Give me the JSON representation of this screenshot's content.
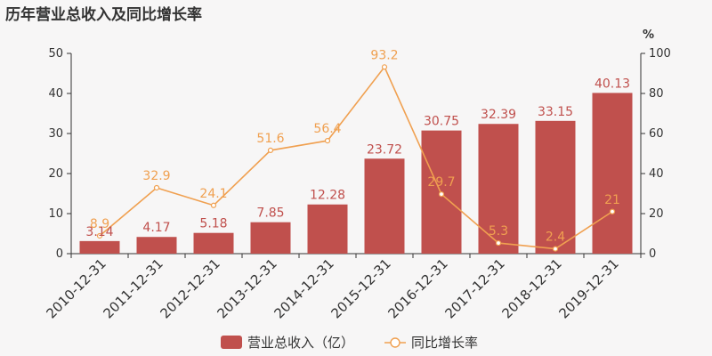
{
  "chart_data": {
    "type": "bar",
    "title": "历年营业总收入及同比增长率",
    "categories": [
      "2010-12-31",
      "2011-12-31",
      "2012-12-31",
      "2013-12-31",
      "2014-12-31",
      "2015-12-31",
      "2016-12-31",
      "2017-12-31",
      "2018-12-31",
      "2019-12-31"
    ],
    "series": [
      {
        "name": "营业总收入（亿）",
        "type": "bar",
        "axis": "left",
        "color": "#c0504d",
        "values": [
          3.14,
          4.17,
          5.18,
          7.85,
          12.28,
          23.72,
          30.75,
          32.39,
          33.15,
          40.13
        ]
      },
      {
        "name": "同比增长率",
        "type": "line",
        "axis": "right",
        "color": "#f0a050",
        "values": [
          8.9,
          32.9,
          24.1,
          51.6,
          56.4,
          93.2,
          29.7,
          5.3,
          2.4,
          21
        ]
      }
    ],
    "ylim_left": [
      0,
      50
    ],
    "yticks_left": [
      0,
      10,
      20,
      30,
      40,
      50
    ],
    "ylim_right": [
      0,
      100
    ],
    "yticks_right": [
      0,
      20,
      40,
      60,
      80,
      100
    ],
    "ylabel_right": "%",
    "legend_position": "bottom-center",
    "grid": false
  }
}
